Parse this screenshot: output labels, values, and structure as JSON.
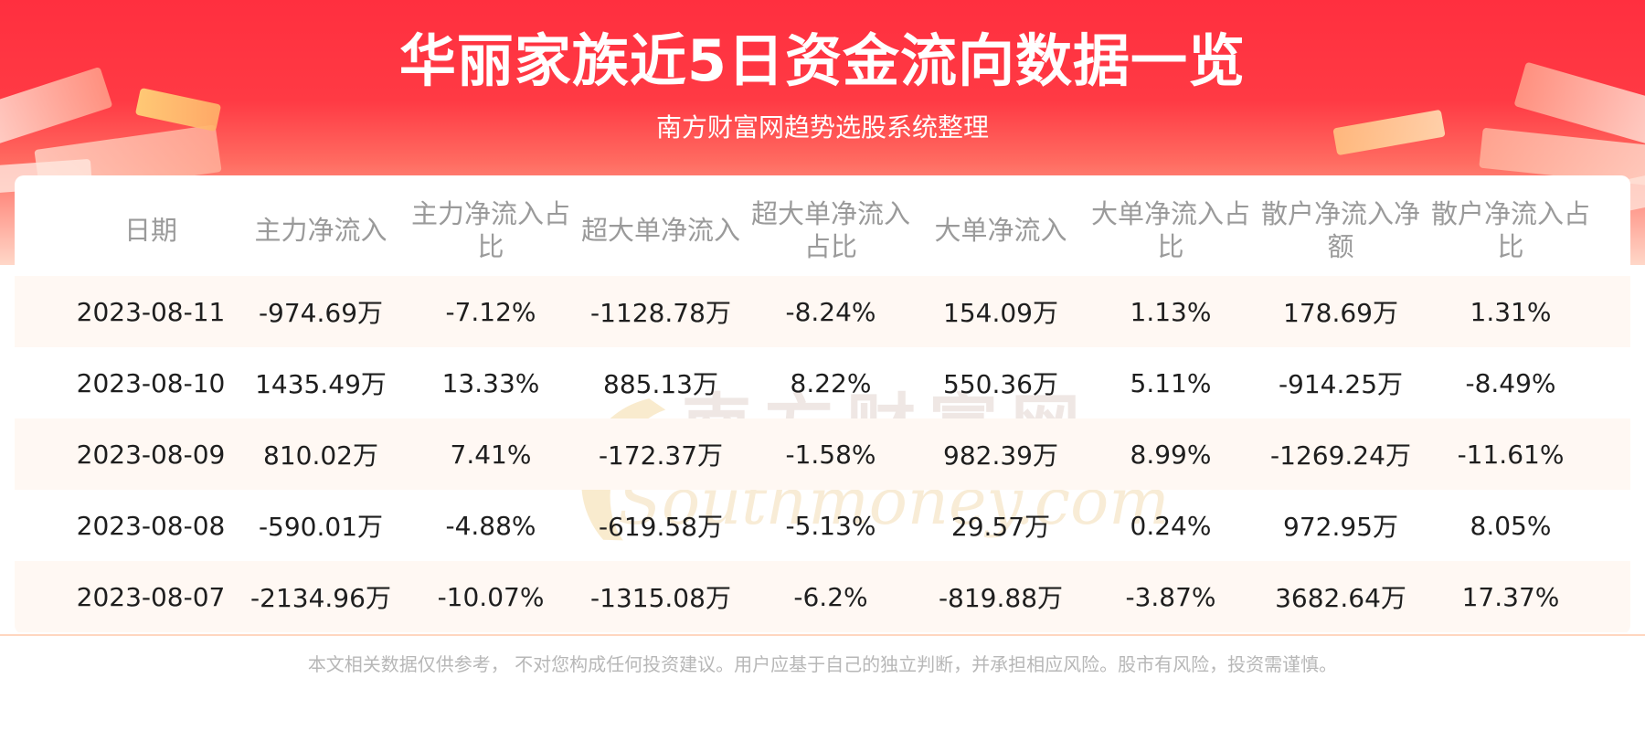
{
  "header": {
    "title": "华丽家族近5日资金流向数据一览",
    "subtitle": "南方财富网趋势选股系统整理"
  },
  "watermark": {
    "cn": "南方财富网",
    "en": "Southmoney.com"
  },
  "table": {
    "columns": [
      "日期",
      "主力净流入",
      "主力净流入占比",
      "超大单净流入",
      "超大单净流入占比",
      "大单净流入",
      "大单净流入占比",
      "散户净流入净额",
      "散户净流入占比"
    ],
    "rows": [
      [
        "2023-08-11",
        "-974.69万",
        "-7.12%",
        "-1128.78万",
        "-8.24%",
        "154.09万",
        "1.13%",
        "178.69万",
        "1.31%"
      ],
      [
        "2023-08-10",
        "1435.49万",
        "13.33%",
        "885.13万",
        "8.22%",
        "550.36万",
        "5.11%",
        "-914.25万",
        "-8.49%"
      ],
      [
        "2023-08-09",
        "810.02万",
        "7.41%",
        "-172.37万",
        "-1.58%",
        "982.39万",
        "8.99%",
        "-1269.24万",
        "-11.61%"
      ],
      [
        "2023-08-08",
        "-590.01万",
        "-4.88%",
        "-619.58万",
        "-5.13%",
        "29.57万",
        "0.24%",
        "972.95万",
        "8.05%"
      ],
      [
        "2023-08-07",
        "-2134.96万",
        "-10.07%",
        "-1315.08万",
        "-6.2%",
        "-819.88万",
        "-3.87%",
        "3682.64万",
        "17.37%"
      ]
    ]
  },
  "footer": {
    "disclaimer": "本文相关数据仅供参考， 不对您构成任何投资建议。用户应基于自己的独立判断，并承担相应风险。股市有风险，投资需谨慎。"
  },
  "colors": {
    "banner_red": "#ff2f3f",
    "row_shade": "#fff8f3",
    "header_text": "#9a9a9a",
    "cell_text": "#1e1e1e"
  }
}
